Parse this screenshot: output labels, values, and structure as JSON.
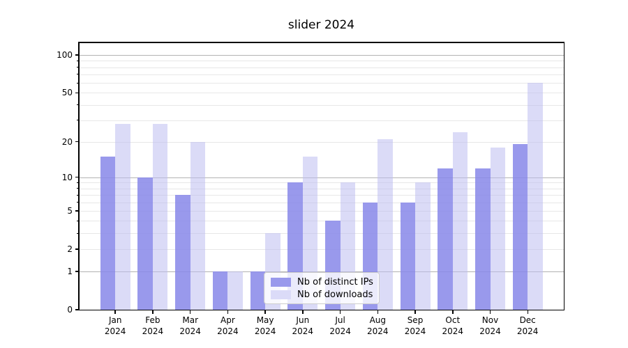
{
  "figure": {
    "background": "#ffffff"
  },
  "chart_data": {
    "type": "bar",
    "title": "slider 2024",
    "categories": [
      "Jan",
      "Feb",
      "Mar",
      "Apr",
      "May",
      "Jun",
      "Jul",
      "Aug",
      "Sep",
      "Oct",
      "Nov",
      "Dec"
    ],
    "year_label": "2024",
    "series": [
      {
        "name": "Nb of distinct IPs",
        "color": "#9999ec",
        "fill": "rgba(135,135,233,0.85)",
        "values": [
          15,
          10,
          7,
          1,
          1,
          9,
          4,
          6,
          6,
          12,
          12,
          19
        ]
      },
      {
        "name": "Nb of downloads",
        "color": "#dbdbf8",
        "fill": "rgba(190,190,240,0.55)",
        "values": [
          28,
          28,
          20,
          1,
          3,
          15,
          9,
          21,
          9,
          24,
          18,
          60
        ]
      }
    ],
    "xlabel": "",
    "ylabel": "",
    "yscale": "log1p",
    "ylim": [
      0,
      126
    ],
    "grid": true,
    "legend_position": "lower center",
    "ytick_values": [
      0,
      1,
      2,
      5,
      10,
      20,
      50,
      100
    ],
    "ytick_labels": [
      "0",
      "1",
      "2",
      "5",
      "10",
      "20",
      "50",
      "100"
    ],
    "major_gridlines": [
      1,
      10,
      100
    ],
    "minor_gridlines": [
      2,
      3,
      4,
      5,
      6,
      7,
      8,
      9,
      20,
      30,
      40,
      50,
      60,
      70,
      80,
      90
    ]
  }
}
